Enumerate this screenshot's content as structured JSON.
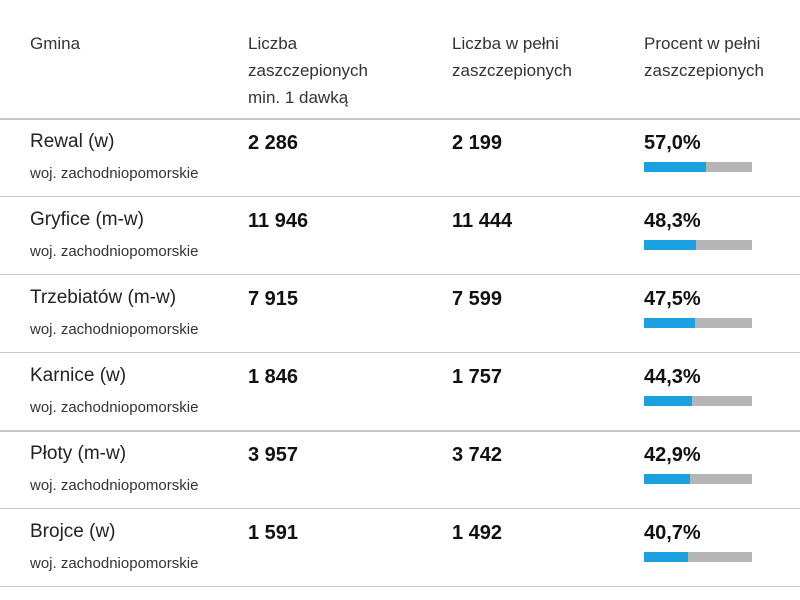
{
  "headers": {
    "gmina": [
      "Gmina"
    ],
    "min1": [
      "Liczba",
      "zaszczepionych",
      "min. 1 dawką"
    ],
    "full": [
      "Liczba w pełni",
      "zaszczepionych"
    ],
    "percent": [
      "Procent w pełni",
      "zaszczepionych"
    ]
  },
  "colors": {
    "bar_fill": "#1ba1e2",
    "bar_track": "#b5b5b5"
  },
  "rows": [
    {
      "name": "Rewal (w)",
      "voivodeship": "woj. zachodniopomorskie",
      "min1": "2 286",
      "full": "2 199",
      "percent": "57,0%",
      "fraction": 0.57
    },
    {
      "name": "Gryfice (m-w)",
      "voivodeship": "woj. zachodniopomorskie",
      "min1": "11 946",
      "full": "11 444",
      "percent": "48,3%",
      "fraction": 0.483
    },
    {
      "name": "Trzebiatów (m-w)",
      "voivodeship": "woj. zachodniopomorskie",
      "min1": "7 915",
      "full": "7 599",
      "percent": "47,5%",
      "fraction": 0.475
    },
    {
      "name": "Karnice (w)",
      "voivodeship": "woj. zachodniopomorskie",
      "min1": "1 846",
      "full": "1 757",
      "percent": "44,3%",
      "fraction": 0.443
    },
    {
      "name": "Płoty (m-w)",
      "voivodeship": "woj. zachodniopomorskie",
      "min1": "3 957",
      "full": "3 742",
      "percent": "42,9%",
      "fraction": 0.429
    },
    {
      "name": "Brojce (w)",
      "voivodeship": "woj. zachodniopomorskie",
      "min1": "1 591",
      "full": "1 492",
      "percent": "40,7%",
      "fraction": 0.407
    }
  ]
}
